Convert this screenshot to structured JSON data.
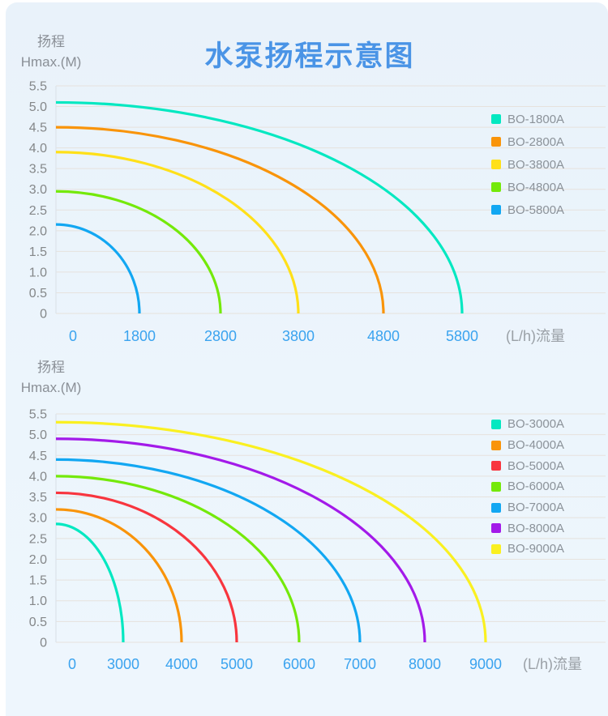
{
  "page": {
    "title": "水泵扬程示意图",
    "y_axis_label_line1": "扬程",
    "y_axis_label_line2": "Hmax.(M)",
    "x_axis_unit": "(L/h)流量"
  },
  "chart_data": [
    {
      "type": "line",
      "title": "水泵扬程示意图 (upper chart)",
      "ylabel": "扬程 Hmax.(M)",
      "xlabel": "(L/h)流量",
      "ylim": [
        0,
        5.5
      ],
      "grid": true,
      "legend_position": "right",
      "y_ticks": [
        "5.5",
        "5.0",
        "4.5",
        "4.0",
        "3.5",
        "3.0",
        "2.5",
        "2.0",
        "1.5",
        "1.0",
        "0.5",
        "0"
      ],
      "x_tick_labels": [
        "0",
        "1800",
        "2800",
        "3800",
        "4800",
        "5800"
      ],
      "series": [
        {
          "name": "BO-1800A",
          "color": "#03e8c1",
          "max_head_m": 5.1,
          "zero_head_at_flow_lh": "5800"
        },
        {
          "name": "BO-2800A",
          "color": "#f9940a",
          "max_head_m": 4.5,
          "zero_head_at_flow_lh": "4800"
        },
        {
          "name": "BO-3800A",
          "color": "#ffe019",
          "max_head_m": 3.9,
          "zero_head_at_flow_lh": "3800"
        },
        {
          "name": "BO-4800A",
          "color": "#74e90a",
          "max_head_m": 2.95,
          "zero_head_at_flow_lh": "2800"
        },
        {
          "name": "BO-5800A",
          "color": "#12a7f2",
          "max_head_m": 2.15,
          "zero_head_at_flow_lh": "1800"
        }
      ]
    },
    {
      "type": "line",
      "title": "水泵扬程示意图 (lower chart)",
      "ylabel": "扬程 Hmax.(M)",
      "xlabel": "(L/h)流量",
      "ylim": [
        0,
        5.5
      ],
      "grid": true,
      "legend_position": "right",
      "y_ticks": [
        "5.5",
        "5.0",
        "4.5",
        "4.0",
        "3.5",
        "3.0",
        "2.5",
        "2.0",
        "1.5",
        "1.0",
        "0.5",
        "0"
      ],
      "x_tick_labels": [
        "0",
        "3000",
        "4000",
        "5000",
        "6000",
        "7000",
        "8000",
        "9000"
      ],
      "series": [
        {
          "name": "BO-3000A",
          "color": "#03e8c1",
          "max_head_m": 2.85,
          "zero_head_at_flow_lh": "3000"
        },
        {
          "name": "BO-4000A",
          "color": "#f9940a",
          "max_head_m": 3.2,
          "zero_head_at_flow_lh": "4000"
        },
        {
          "name": "BO-5000A",
          "color": "#f8353e",
          "max_head_m": 3.6,
          "zero_head_at_flow_lh": "5000"
        },
        {
          "name": "BO-6000A",
          "color": "#74e90a",
          "max_head_m": 4.0,
          "zero_head_at_flow_lh": "6000"
        },
        {
          "name": "BO-7000A",
          "color": "#12a7f2",
          "max_head_m": 4.4,
          "zero_head_at_flow_lh": "7000"
        },
        {
          "name": "BO-8000A",
          "color": "#a31ae9",
          "max_head_m": 4.9,
          "zero_head_at_flow_lh": "8000"
        },
        {
          "name": "BO-9000A",
          "color": "#faf021",
          "max_head_m": 5.3,
          "zero_head_at_flow_lh": "9000"
        }
      ]
    }
  ]
}
